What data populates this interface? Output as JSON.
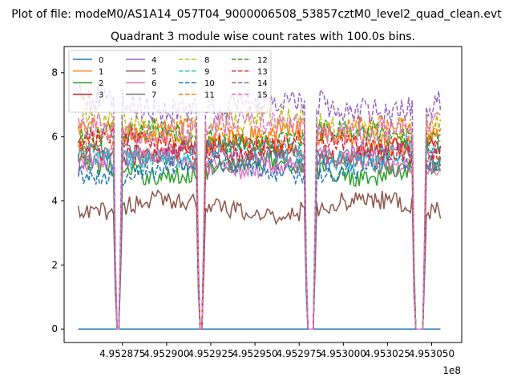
{
  "chart_data": {
    "type": "line",
    "suptitle": "Plot of file: modeM0/AS1A14_057T04_9000006508_53857cztM0_level2_quad_clean.evt",
    "title": "Quadrant 3 module wise count rates with 100.0s bins.",
    "xlabel": "",
    "ylabel": "",
    "x_offset_label": "1e8",
    "xlim": [
      495284200,
      495306700
    ],
    "ylim": [
      -0.42,
      8.82
    ],
    "x_ticks": [
      4.952875,
      4.9529,
      4.952925,
      4.95295,
      4.952975,
      4.953,
      4.953025,
      4.95305
    ],
    "x_tick_labels": [
      "4.952875",
      "4.952900",
      "4.952925",
      "4.952950",
      "4.952975",
      "4.953000",
      "4.953025",
      "4.953050"
    ],
    "y_ticks": [
      0,
      2,
      4,
      6,
      8
    ],
    "y_tick_labels": [
      "0",
      "2",
      "4",
      "6",
      "8"
    ],
    "x_start": 495285000,
    "bin_width": 100,
    "legend": {
      "placement": "upper-left",
      "columns": 4
    },
    "gaps": [
      {
        "name": "gap1",
        "start": 495287200,
        "end": 495287300
      },
      {
        "name": "gap2",
        "start": 495291900,
        "end": 495292000
      },
      {
        "name": "gap3",
        "start": 495298000,
        "end": 495298300
      },
      {
        "name": "gap4",
        "start": 495304100,
        "end": 495304500
      }
    ],
    "series": [
      {
        "name": "0",
        "color": "#1f77b4",
        "style": "solid",
        "level": 0.0,
        "amp": 0.0
      },
      {
        "name": "1",
        "color": "#ff7f0e",
        "style": "solid",
        "level": 6.0,
        "amp": 0.35
      },
      {
        "name": "2",
        "color": "#2ca02c",
        "style": "solid",
        "level": 5.0,
        "amp": 0.3
      },
      {
        "name": "3",
        "color": "#d62728",
        "style": "solid",
        "level": 5.6,
        "amp": 0.3
      },
      {
        "name": "4",
        "color": "#9467bd",
        "style": "solid",
        "level": 5.4,
        "amp": 0.3
      },
      {
        "name": "5",
        "color": "#8c564b",
        "style": "solid",
        "level": 3.8,
        "amp": 0.3
      },
      {
        "name": "6",
        "color": "#e377c2",
        "style": "solid",
        "level": 5.2,
        "amp": 0.3
      },
      {
        "name": "7",
        "color": "#7f7f7f",
        "style": "solid",
        "level": 5.3,
        "amp": 0.3
      },
      {
        "name": "8",
        "color": "#bcbd22",
        "style": "dashed",
        "level": 6.4,
        "amp": 0.4
      },
      {
        "name": "9",
        "color": "#17becf",
        "style": "dashed",
        "level": 5.5,
        "amp": 0.35
      },
      {
        "name": "10",
        "color": "#1f77b4",
        "style": "dashed",
        "level": 5.0,
        "amp": 0.3
      },
      {
        "name": "11",
        "color": "#ff7f0e",
        "style": "dashed",
        "level": 6.1,
        "amp": 0.35
      },
      {
        "name": "12",
        "color": "#2ca02c",
        "style": "dashed",
        "level": 6.0,
        "amp": 0.35
      },
      {
        "name": "13",
        "color": "#d62728",
        "style": "dashed",
        "level": 5.7,
        "amp": 0.35
      },
      {
        "name": "14",
        "color": "#9467bd",
        "style": "dashed",
        "level": 7.0,
        "amp": 0.45
      },
      {
        "name": "15",
        "color": "#e377c2",
        "style": "dashed",
        "level": 6.3,
        "amp": 0.4
      }
    ]
  }
}
